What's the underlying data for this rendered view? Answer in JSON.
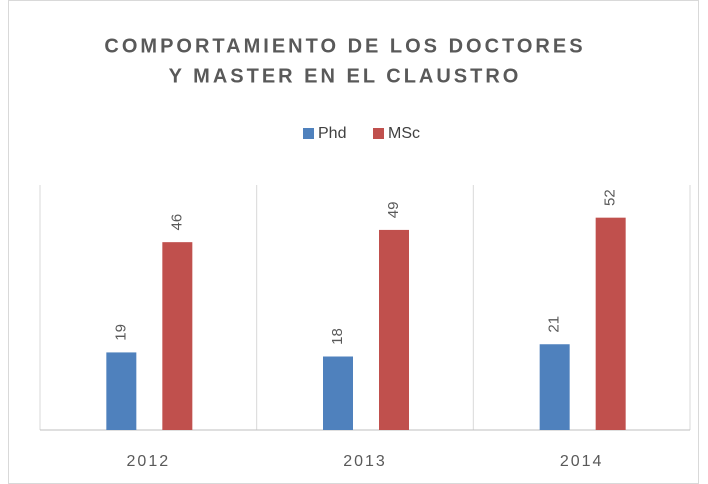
{
  "chart_data": {
    "type": "bar",
    "title_lines": [
      "COMPORTAMIENTO DE LOS DOCTORES",
      "Y MASTER EN EL CLAUSTRO"
    ],
    "categories": [
      "2012",
      "2013",
      "2014"
    ],
    "series": [
      {
        "name": "Phd",
        "color": "#4f81bd",
        "values": [
          19,
          18,
          21
        ]
      },
      {
        "name": "MSc",
        "color": "#c0504d",
        "values": [
          46,
          49,
          52
        ]
      }
    ],
    "ylim": [
      0,
      60
    ],
    "legend": "top"
  }
}
